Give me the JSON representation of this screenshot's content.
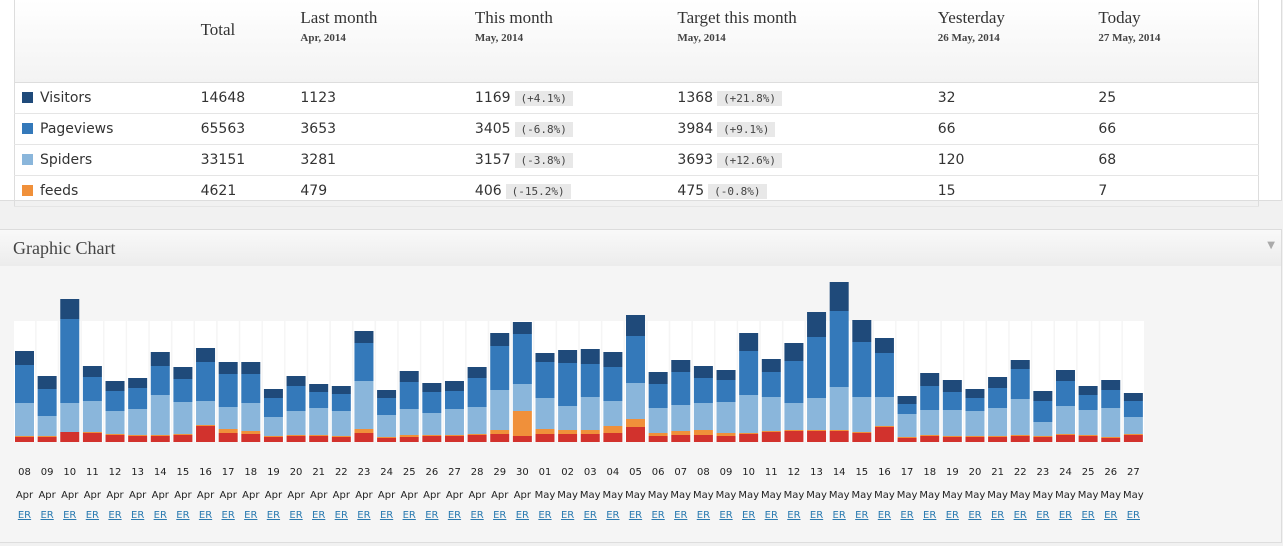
{
  "table": {
    "columns": [
      {
        "title": "Total"
      },
      {
        "title": "Last month",
        "subtitle": "Apr, 2014"
      },
      {
        "title": "This month",
        "subtitle": "May, 2014"
      },
      {
        "title": "Target this month",
        "subtitle": "May, 2014"
      },
      {
        "title": "Yesterday",
        "subtitle": "26 May, 2014"
      },
      {
        "title": "Today",
        "subtitle": "27 May, 2014"
      }
    ],
    "rows": [
      {
        "name": "Visitors",
        "color": "#1f4a7a",
        "cells": [
          14648,
          1123,
          {
            "value": 1169,
            "change": "(+4.1%)"
          },
          {
            "value": 1368,
            "change": "(+21.8%)"
          },
          32,
          25
        ]
      },
      {
        "name": "Pageviews",
        "color": "#3479ba",
        "cells": [
          65563,
          3653,
          {
            "value": 3405,
            "change": "(-6.8%)"
          },
          {
            "value": 3984,
            "change": "(+9.1%)"
          },
          66,
          66
        ]
      },
      {
        "name": "Spiders",
        "color": "#8ab6db",
        "cells": [
          33151,
          3281,
          {
            "value": 3157,
            "change": "(-3.8%)"
          },
          {
            "value": 3693,
            "change": "(+12.6%)"
          },
          120,
          68
        ]
      },
      {
        "name": "feeds",
        "color": "#f0903a",
        "cells": [
          4621,
          479,
          {
            "value": 406,
            "change": "(-15.2%)"
          },
          {
            "value": 475,
            "change": "(-0.8%)"
          },
          15,
          7
        ]
      }
    ]
  },
  "chart_data": {
    "type": "stacked-bar",
    "title": "Graphic Chart",
    "link_label": "ER",
    "categories": [
      [
        "08",
        "Apr"
      ],
      [
        "09",
        "Apr"
      ],
      [
        "10",
        "Apr"
      ],
      [
        "11",
        "Apr"
      ],
      [
        "12",
        "Apr"
      ],
      [
        "13",
        "Apr"
      ],
      [
        "14",
        "Apr"
      ],
      [
        "15",
        "Apr"
      ],
      [
        "16",
        "Apr"
      ],
      [
        "17",
        "Apr"
      ],
      [
        "18",
        "Apr"
      ],
      [
        "19",
        "Apr"
      ],
      [
        "20",
        "Apr"
      ],
      [
        "21",
        "Apr"
      ],
      [
        "22",
        "Apr"
      ],
      [
        "23",
        "Apr"
      ],
      [
        "24",
        "Apr"
      ],
      [
        "25",
        "Apr"
      ],
      [
        "26",
        "Apr"
      ],
      [
        "27",
        "Apr"
      ],
      [
        "28",
        "Apr"
      ],
      [
        "29",
        "Apr"
      ],
      [
        "30",
        "Apr"
      ],
      [
        "01",
        "May"
      ],
      [
        "02",
        "May"
      ],
      [
        "03",
        "May"
      ],
      [
        "04",
        "May"
      ],
      [
        "05",
        "May"
      ],
      [
        "06",
        "May"
      ],
      [
        "07",
        "May"
      ],
      [
        "08",
        "May"
      ],
      [
        "09",
        "May"
      ],
      [
        "10",
        "May"
      ],
      [
        "11",
        "May"
      ],
      [
        "12",
        "May"
      ],
      [
        "13",
        "May"
      ],
      [
        "14",
        "May"
      ],
      [
        "15",
        "May"
      ],
      [
        "16",
        "May"
      ],
      [
        "17",
        "May"
      ],
      [
        "18",
        "May"
      ],
      [
        "19",
        "May"
      ],
      [
        "20",
        "May"
      ],
      [
        "21",
        "May"
      ],
      [
        "22",
        "May"
      ],
      [
        "23",
        "May"
      ],
      [
        "24",
        "May"
      ],
      [
        "25",
        "May"
      ],
      [
        "26",
        "May"
      ],
      [
        "27",
        "May"
      ]
    ],
    "series": [
      {
        "color": "#d2322d",
        "values": [
          5,
          5,
          10,
          9,
          7,
          6,
          6,
          7,
          16,
          9,
          8,
          5,
          6,
          6,
          5,
          9,
          4,
          5,
          6,
          6,
          7,
          8,
          6,
          8,
          8,
          8,
          9,
          15,
          6,
          7,
          7,
          6,
          8,
          10,
          11,
          11,
          11,
          9,
          15,
          4,
          6,
          5,
          5,
          5,
          6,
          5,
          7,
          6,
          4,
          7
        ]
      },
      {
        "color": "#f0903a",
        "values": [
          1,
          1,
          0,
          1,
          1,
          1,
          1,
          1,
          1,
          4,
          3,
          1,
          1,
          1,
          1,
          4,
          1,
          2,
          1,
          1,
          1,
          4,
          25,
          5,
          4,
          4,
          7,
          8,
          3,
          4,
          5,
          3,
          1,
          1,
          1,
          1,
          1,
          1,
          1,
          1,
          1,
          1,
          1,
          1,
          1,
          1,
          1,
          1,
          1,
          1
        ]
      },
      {
        "color": "#8ab6db",
        "values": [
          33,
          20,
          29,
          31,
          23,
          26,
          40,
          32,
          24,
          22,
          28,
          19,
          24,
          27,
          25,
          48,
          22,
          26,
          22,
          26,
          27,
          40,
          27,
          31,
          24,
          33,
          25,
          36,
          25,
          26,
          27,
          31,
          38,
          34,
          27,
          32,
          43,
          35,
          29,
          23,
          25,
          26,
          25,
          28,
          36,
          14,
          28,
          25,
          29,
          17
        ]
      },
      {
        "color": "#3479ba",
        "values": [
          38,
          27,
          84,
          24,
          20,
          21,
          29,
          23,
          39,
          33,
          29,
          19,
          25,
          16,
          17,
          38,
          17,
          27,
          21,
          18,
          29,
          44,
          50,
          36,
          43,
          33,
          34,
          47,
          24,
          33,
          25,
          22,
          44,
          25,
          42,
          61,
          76,
          55,
          44,
          10,
          24,
          18,
          13,
          20,
          30,
          21,
          25,
          15,
          18,
          16
        ]
      },
      {
        "color": "#1f4a7a",
        "values": [
          14,
          13,
          20,
          11,
          10,
          10,
          14,
          12,
          14,
          12,
          12,
          9,
          10,
          8,
          8,
          12,
          8,
          11,
          9,
          10,
          11,
          13,
          12,
          9,
          13,
          15,
          15,
          21,
          12,
          12,
          12,
          10,
          18,
          13,
          18,
          25,
          29,
          22,
          15,
          8,
          13,
          12,
          9,
          11,
          9,
          10,
          11,
          9,
          10,
          8
        ]
      }
    ]
  }
}
